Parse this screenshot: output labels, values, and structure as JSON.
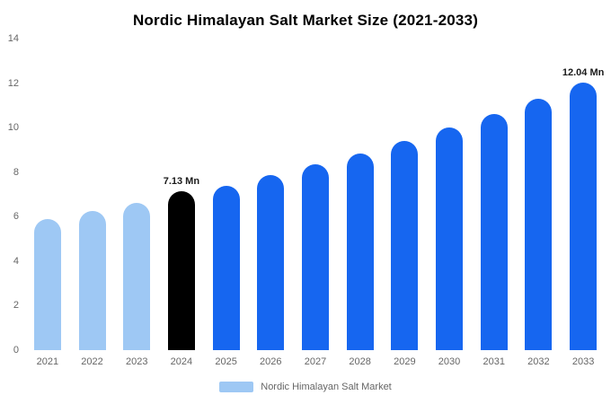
{
  "chart_data": {
    "type": "bar",
    "title": "Nordic Himalayan Salt Market Size (2021-2033)",
    "unit": "Mn",
    "categories": [
      "2021",
      "2022",
      "2023",
      "2024",
      "2025",
      "2026",
      "2027",
      "2028",
      "2029",
      "2030",
      "2031",
      "2032",
      "2033"
    ],
    "values": [
      5.9,
      6.25,
      6.6,
      7.13,
      7.4,
      7.85,
      8.35,
      8.85,
      9.4,
      10.0,
      10.6,
      11.3,
      12.04
    ],
    "bar_colors": [
      "#9ec8f4",
      "#9ec8f4",
      "#9ec8f4",
      "#000000",
      "#1666f0",
      "#1666f0",
      "#1666f0",
      "#1666f0",
      "#1666f0",
      "#1666f0",
      "#1666f0",
      "#1666f0",
      "#1666f0"
    ],
    "data_labels": [
      {
        "index": 3,
        "text": "7.13 Mn"
      },
      {
        "index": 12,
        "text": "12.04 Mn"
      }
    ],
    "ylim": [
      0,
      14
    ],
    "yticks": [
      0,
      2,
      4,
      6,
      8,
      10,
      12,
      14
    ],
    "grid": false,
    "legend": {
      "position": "bottom",
      "entries": [
        {
          "label": "Nordic Himalayan Salt Market",
          "color": "#9ec8f4"
        }
      ]
    }
  }
}
